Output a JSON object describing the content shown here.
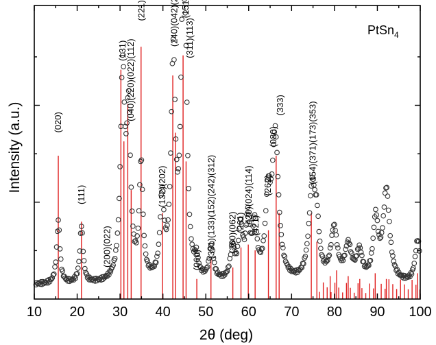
{
  "chart_data": {
    "type": "line",
    "title": "",
    "compound_label": {
      "base": "PtSn",
      "subscript": "4"
    },
    "xlabel": "2θ (deg)",
    "ylabel": "Intensity (a.u.)",
    "xlim": [
      10,
      100
    ],
    "ylim": [
      0,
      100
    ],
    "x_ticks": [
      10,
      20,
      30,
      40,
      50,
      60,
      70,
      80,
      90,
      100
    ],
    "x_tick_labels": [
      "10",
      "20",
      "30",
      "40",
      "50",
      "60",
      "70",
      "80",
      "90",
      "100"
    ],
    "y_tick_labels_shown": false,
    "grid": false,
    "series": [
      {
        "style": "open-circles",
        "color": "#333333",
        "peaks": [
          {
            "pos": 15.6,
            "height": 22,
            "width": 0.45
          },
          {
            "pos": 21.0,
            "height": 20,
            "width": 0.45
          },
          {
            "pos": 30.6,
            "height": 72,
            "width": 0.6
          },
          {
            "pos": 32.0,
            "height": 55,
            "width": 0.55
          },
          {
            "pos": 34.9,
            "height": 40,
            "width": 0.5
          },
          {
            "pos": 39.8,
            "height": 28,
            "width": 0.55
          },
          {
            "pos": 42.4,
            "height": 77,
            "width": 0.6
          },
          {
            "pos": 44.6,
            "height": 82,
            "width": 0.55
          },
          {
            "pos": 45.3,
            "height": 55,
            "width": 0.5
          },
          {
            "pos": 47.8,
            "height": 6,
            "width": 0.5
          },
          {
            "pos": 51.3,
            "height": 12,
            "width": 0.6
          },
          {
            "pos": 56.2,
            "height": 11,
            "width": 0.6
          },
          {
            "pos": 58.1,
            "height": 18,
            "width": 0.6
          },
          {
            "pos": 59.8,
            "height": 20,
            "width": 0.6
          },
          {
            "pos": 61.4,
            "height": 18,
            "width": 0.6
          },
          {
            "pos": 64.5,
            "height": 25,
            "width": 0.7
          },
          {
            "pos": 66.2,
            "height": 50,
            "width": 0.9
          },
          {
            "pos": 74.8,
            "height": 32,
            "width": 0.9
          },
          {
            "pos": 75.9,
            "height": 15,
            "width": 0.6
          },
          {
            "pos": 79.9,
            "height": 18,
            "width": 0.9
          },
          {
            "pos": 83.2,
            "height": 12,
            "width": 0.9
          },
          {
            "pos": 85.8,
            "height": 10,
            "width": 0.8
          },
          {
            "pos": 89.6,
            "height": 21,
            "width": 0.7
          },
          {
            "pos": 92.1,
            "height": 32,
            "width": 0.9
          },
          {
            "pos": 99.4,
            "height": 15,
            "width": 0.7
          }
        ],
        "background": 5
      },
      {
        "style": "vertical-lines",
        "color": "#e02020",
        "lines": [
          {
            "pos": 15.6,
            "height": 50
          },
          {
            "pos": 21.0,
            "height": 27
          },
          {
            "pos": 30.2,
            "height": 80
          },
          {
            "pos": 30.9,
            "height": 55
          },
          {
            "pos": 31.8,
            "height": 68
          },
          {
            "pos": 32.6,
            "height": 38
          },
          {
            "pos": 34.9,
            "height": 88
          },
          {
            "pos": 39.9,
            "height": 30
          },
          {
            "pos": 42.3,
            "height": 78
          },
          {
            "pos": 42.9,
            "height": 58
          },
          {
            "pos": 44.7,
            "height": 85
          },
          {
            "pos": 45.4,
            "height": 48
          },
          {
            "pos": 47.9,
            "height": 7
          },
          {
            "pos": 51.2,
            "height": 14
          },
          {
            "pos": 56.3,
            "height": 11
          },
          {
            "pos": 58.2,
            "height": 18
          },
          {
            "pos": 59.9,
            "height": 19
          },
          {
            "pos": 61.5,
            "height": 17
          },
          {
            "pos": 64.6,
            "height": 24
          },
          {
            "pos": 66.4,
            "height": 50
          },
          {
            "pos": 67.1,
            "height": 30
          },
          {
            "pos": 74.6,
            "height": 30
          },
          {
            "pos": 75.9,
            "height": 20
          },
          {
            "pos": 79.0,
            "height": 8
          },
          {
            "pos": 80.5,
            "height": 10
          },
          {
            "pos": 83.2,
            "height": 8
          },
          {
            "pos": 85.9,
            "height": 7
          },
          {
            "pos": 89.5,
            "height": 9
          },
          {
            "pos": 92.1,
            "height": 7
          },
          {
            "pos": 99.4,
            "height": 9
          }
        ]
      }
    ],
    "annotations": [
      {
        "text": "(020)",
        "x": 15.6,
        "y": 58
      },
      {
        "text": "(111)",
        "x": 21.0,
        "y": 33
      },
      {
        "text": "(200)(022)",
        "x": 27.0,
        "y": 11
      },
      {
        "text": "(131)",
        "x": 30.6,
        "y": 83
      },
      {
        "text": "(040)(220)(022)(112)",
        "x": 32.5,
        "y": 62
      },
      {
        "text": "(221)",
        "x": 35.0,
        "y": 97
      },
      {
        "text": "(132)(202)",
        "x": 39.9,
        "y": 32
      },
      {
        "text": "(240)(042)(222)",
        "x": 42.7,
        "y": 88
      },
      {
        "text": "(151)(241)",
        "x": 45.3,
        "y": 98
      },
      {
        "text": "(311)(113)",
        "x": 46.3,
        "y": 84
      },
      {
        "text": "(060)",
        "x": 48.0,
        "y": 10
      },
      {
        "text": "(331)(133)(152)(242)(312)",
        "x": 51.3,
        "y": 14
      },
      {
        "text": "(260)(062)",
        "x": 56.3,
        "y": 16
      },
      {
        "text": "(261)",
        "x": 58.1,
        "y": 23
      },
      {
        "text": "(420)(024)(114)",
        "x": 60.0,
        "y": 25
      },
      {
        "text": "(421)",
        "x": 61.6,
        "y": 22
      },
      {
        "text": "(262)",
        "x": 64.5,
        "y": 36
      },
      {
        "text": "(080)",
        "x": 65.8,
        "y": 53
      },
      {
        "text": "(333)",
        "x": 67.4,
        "y": 64
      },
      {
        "text": "(154)(371)(173)(353)",
        "x": 75.0,
        "y": 40
      }
    ]
  }
}
